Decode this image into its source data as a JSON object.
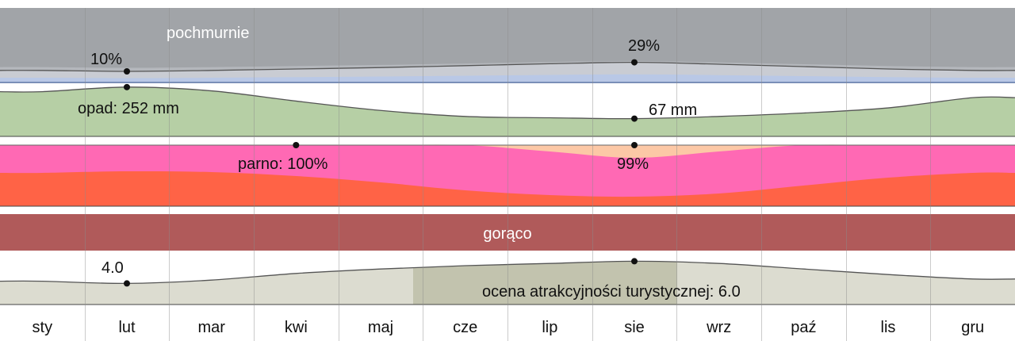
{
  "months": [
    "sty",
    "lut",
    "mar",
    "kwi",
    "maj",
    "cze",
    "lip",
    "sie",
    "wrz",
    "paź",
    "lis",
    "gru"
  ],
  "colors": {
    "cloud_top": "#a1a4a8",
    "cloud_mid": "#b4b7bc",
    "cloud_low": "#c9ccd3",
    "clear": "#b9c8e6",
    "precip": "#b6cfa5",
    "humid_top": "#fcc8a6",
    "humid_mid": "#ff69b4",
    "humid_low": "#ff6346",
    "temp": "#b05a5a",
    "tourism_light": "#dcdcd0",
    "tourism_dark": "#c2c3ae",
    "grid": "#c8c8c8"
  },
  "chart_data": [
    {
      "type": "area",
      "name": "clouds",
      "band_label": "pochmurnie",
      "x": [
        "sty",
        "lut",
        "mar",
        "kwi",
        "maj",
        "cze",
        "lip",
        "sie",
        "wrz",
        "paź",
        "lis",
        "gru"
      ],
      "values": [
        12,
        10,
        12,
        15,
        18,
        22,
        26,
        29,
        25,
        20,
        15,
        12
      ],
      "min": {
        "month": "lut",
        "label": "10%"
      },
      "max": {
        "month": "sie",
        "label": "29%"
      }
    },
    {
      "type": "area",
      "name": "precipitation",
      "x": [
        "sty",
        "lut",
        "mar",
        "kwi",
        "maj",
        "cze",
        "lip",
        "sie",
        "wrz",
        "paź",
        "lis",
        "gru"
      ],
      "values": [
        225,
        252,
        230,
        170,
        115,
        80,
        72,
        67,
        80,
        100,
        130,
        190
      ],
      "unit": "mm",
      "max": {
        "month": "lut",
        "label": "opad: 252 mm"
      },
      "min": {
        "month": "sie",
        "label": "67 mm"
      }
    },
    {
      "type": "area",
      "name": "humidity",
      "x": [
        "sty",
        "lut",
        "mar",
        "kwi",
        "maj",
        "cze",
        "lip",
        "sie",
        "wrz",
        "paź",
        "lis",
        "gru"
      ],
      "values": [
        100,
        100,
        100,
        100,
        100,
        100,
        99.5,
        99,
        99.5,
        100,
        100,
        100
      ],
      "max": {
        "month": "kwi",
        "label": "parno: 100%"
      },
      "min": {
        "month": "sie",
        "label": "99%"
      }
    },
    {
      "type": "area",
      "name": "temperature",
      "band_label": "gorąco"
    },
    {
      "type": "area",
      "name": "tourism",
      "x": [
        "sty",
        "lut",
        "mar",
        "kwi",
        "maj",
        "cze",
        "lip",
        "sie",
        "wrz",
        "paź",
        "lis",
        "gru"
      ],
      "values": [
        4.2,
        4.0,
        4.3,
        4.9,
        5.3,
        5.6,
        5.8,
        6.0,
        5.8,
        5.3,
        4.8,
        4.4
      ],
      "min": {
        "month": "lut",
        "label": "4.0"
      },
      "max": {
        "month": "sie",
        "label": "ocena atrakcyjności turystycznej: 6.0"
      }
    }
  ]
}
